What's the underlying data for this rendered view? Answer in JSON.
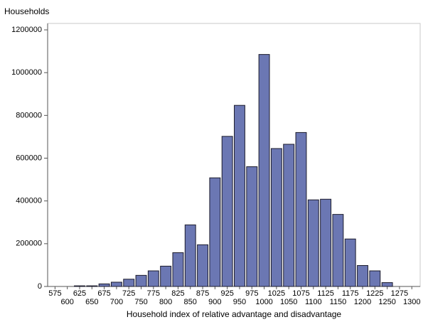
{
  "chart_data": {
    "type": "bar",
    "y_label": "Households",
    "x_label": "Household index of relative advantage and disadvantage",
    "x": [
      625,
      650,
      675,
      700,
      725,
      750,
      775,
      800,
      825,
      850,
      875,
      900,
      925,
      950,
      975,
      1000,
      1025,
      1050,
      1075,
      1100,
      1125,
      1150,
      1175,
      1200,
      1225,
      1250
    ],
    "values": [
      3000,
      3000,
      12000,
      20000,
      34000,
      52000,
      73000,
      95000,
      158000,
      288000,
      195000,
      508000,
      702000,
      847000,
      560000,
      1085000,
      645000,
      665000,
      720000,
      405000,
      408000,
      337000,
      222000,
      98000,
      73000,
      18000
    ],
    "color": "#6b77b3",
    "xlim": [
      560,
      1317
    ],
    "ylim": [
      0,
      1230000
    ],
    "xticks": [
      575,
      600,
      625,
      650,
      675,
      700,
      725,
      750,
      775,
      800,
      825,
      850,
      875,
      900,
      925,
      950,
      975,
      1000,
      1025,
      1050,
      1075,
      1100,
      1125,
      1150,
      1175,
      1200,
      1225,
      1250,
      1275,
      1300
    ],
    "yticks": [
      0,
      200000,
      400000,
      600000,
      800000,
      1000000,
      1200000
    ]
  }
}
